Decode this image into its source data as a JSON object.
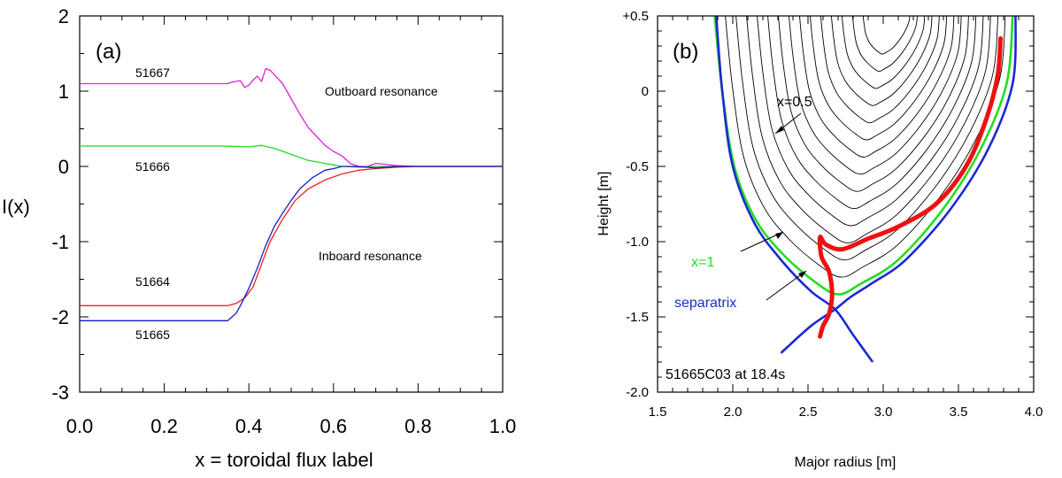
{
  "chart_data": [
    {
      "type": "line",
      "panel_label": "(a)",
      "xlabel": "x = toroidal flux label",
      "ylabel": "I(x)",
      "xlim": [
        0,
        1
      ],
      "ylim": [
        -3,
        2
      ],
      "xticks": [
        "0.0",
        "0.2",
        "0.4",
        "0.6",
        "0.8",
        "1.0"
      ],
      "yticks": [
        "2",
        "1",
        "0",
        "-1",
        "-2",
        "-3"
      ],
      "annotations": [
        "Outboard resonance",
        "Inboard resonance"
      ],
      "series": [
        {
          "name": "51667",
          "color": "#e020e0",
          "points": [
            [
              0,
              1.1
            ],
            [
              0.35,
              1.1
            ],
            [
              0.36,
              1.12
            ],
            [
              0.38,
              1.14
            ],
            [
              0.39,
              1.05
            ],
            [
              0.4,
              1.08
            ],
            [
              0.41,
              1.15
            ],
            [
              0.42,
              1.2
            ],
            [
              0.43,
              1.13
            ],
            [
              0.44,
              1.3
            ],
            [
              0.45,
              1.28
            ],
            [
              0.46,
              1.22
            ],
            [
              0.48,
              1.1
            ],
            [
              0.5,
              0.9
            ],
            [
              0.52,
              0.7
            ],
            [
              0.54,
              0.52
            ],
            [
              0.56,
              0.4
            ],
            [
              0.58,
              0.28
            ],
            [
              0.6,
              0.2
            ],
            [
              0.62,
              0.14
            ],
            [
              0.64,
              0.04
            ],
            [
              0.66,
              0.0
            ],
            [
              0.68,
              0.0
            ],
            [
              0.7,
              0.04
            ],
            [
              0.72,
              0.03
            ],
            [
              0.75,
              0.01
            ],
            [
              0.8,
              0.0
            ],
            [
              1.0,
              0.0
            ]
          ]
        },
        {
          "name": "51666",
          "color": "#22dd22",
          "points": [
            [
              0,
              0.27
            ],
            [
              0.34,
              0.27
            ],
            [
              0.4,
              0.26
            ],
            [
              0.43,
              0.28
            ],
            [
              0.46,
              0.24
            ],
            [
              0.5,
              0.16
            ],
            [
              0.54,
              0.08
            ],
            [
              0.58,
              0.04
            ],
            [
              0.6,
              0.02
            ],
            [
              0.62,
              0.0
            ],
            [
              0.66,
              -0.01
            ],
            [
              0.7,
              0.0
            ],
            [
              1.0,
              0.0
            ]
          ]
        },
        {
          "name": "51664",
          "color": "#ee2222",
          "points": [
            [
              0,
              -1.85
            ],
            [
              0.35,
              -1.85
            ],
            [
              0.37,
              -1.82
            ],
            [
              0.39,
              -1.75
            ],
            [
              0.41,
              -1.6
            ],
            [
              0.43,
              -1.3
            ],
            [
              0.45,
              -1.0
            ],
            [
              0.48,
              -0.7
            ],
            [
              0.51,
              -0.45
            ],
            [
              0.54,
              -0.3
            ],
            [
              0.58,
              -0.18
            ],
            [
              0.62,
              -0.1
            ],
            [
              0.66,
              -0.05
            ],
            [
              0.7,
              -0.03
            ],
            [
              0.75,
              -0.01
            ],
            [
              0.8,
              0.0
            ],
            [
              1.0,
              0.0
            ]
          ]
        },
        {
          "name": "51665",
          "color": "#1a1ac8",
          "points": [
            [
              0,
              -2.05
            ],
            [
              0.35,
              -2.05
            ],
            [
              0.36,
              -2.0
            ],
            [
              0.37,
              -1.95
            ],
            [
              0.38,
              -1.85
            ],
            [
              0.4,
              -1.62
            ],
            [
              0.42,
              -1.35
            ],
            [
              0.44,
              -1.05
            ],
            [
              0.46,
              -0.8
            ],
            [
              0.48,
              -0.62
            ],
            [
              0.5,
              -0.45
            ],
            [
              0.52,
              -0.3
            ],
            [
              0.55,
              -0.15
            ],
            [
              0.58,
              -0.05
            ],
            [
              0.6,
              -0.03
            ],
            [
              0.62,
              0.0
            ],
            [
              0.65,
              0.0
            ],
            [
              0.7,
              -0.02
            ],
            [
              0.75,
              0.0
            ],
            [
              1.0,
              0.0
            ]
          ]
        }
      ]
    },
    {
      "type": "contour",
      "panel_label": "(b)",
      "xlabel": "Major radius [m]",
      "ylabel": "Height [m]",
      "xlim": [
        1.5,
        4.0
      ],
      "ylim": [
        -2.0,
        0.5
      ],
      "xticks": [
        "1.5",
        "2.0",
        "2.5",
        "3.0",
        "3.5",
        "4.0"
      ],
      "yticks": [
        "+0.5",
        "0",
        "-0.5",
        "-1.0",
        "-1.5",
        "-2.0"
      ],
      "annotations": [
        "x=0.5",
        "x=1",
        "separatrix",
        "51665C03 at 18.4s"
      ],
      "flux_surfaces": {
        "count": 14,
        "color": "#000000",
        "axis_center": [
          3.05,
          0.55
        ],
        "outer_surface": [
          [
            1.88,
            0.5
          ],
          [
            1.93,
            0.0
          ],
          [
            2.01,
            -0.5
          ],
          [
            2.15,
            -0.85
          ],
          [
            2.33,
            -1.08
          ],
          [
            2.55,
            -1.27
          ],
          [
            2.7,
            -1.35
          ],
          [
            2.85,
            -1.28
          ],
          [
            3.1,
            -1.12
          ],
          [
            3.4,
            -0.78
          ],
          [
            3.65,
            -0.38
          ],
          [
            3.82,
            0.05
          ],
          [
            3.86,
            0.5
          ]
        ]
      },
      "x1_curve": {
        "color": "#22dd22",
        "points": [
          [
            1.88,
            0.5
          ],
          [
            1.93,
            0.0
          ],
          [
            2.01,
            -0.5
          ],
          [
            2.15,
            -0.85
          ],
          [
            2.33,
            -1.08
          ],
          [
            2.55,
            -1.27
          ],
          [
            2.7,
            -1.35
          ],
          [
            2.85,
            -1.28
          ],
          [
            3.1,
            -1.12
          ],
          [
            3.4,
            -0.78
          ],
          [
            3.65,
            -0.38
          ],
          [
            3.82,
            0.05
          ],
          [
            3.86,
            0.5
          ]
        ]
      },
      "separatrix": {
        "color": "#1a2ad0",
        "left_leg": [
          [
            1.89,
            0.5
          ],
          [
            1.93,
            0.0
          ],
          [
            2.0,
            -0.5
          ],
          [
            2.14,
            -0.87
          ],
          [
            2.32,
            -1.12
          ],
          [
            2.52,
            -1.33
          ],
          [
            2.68,
            -1.45
          ],
          [
            2.8,
            -1.62
          ],
          [
            2.93,
            -1.8
          ]
        ],
        "right_leg": [
          [
            3.88,
            0.5
          ],
          [
            3.86,
            0.05
          ],
          [
            3.7,
            -0.38
          ],
          [
            3.45,
            -0.78
          ],
          [
            3.15,
            -1.12
          ],
          [
            2.92,
            -1.28
          ],
          [
            2.78,
            -1.37
          ],
          [
            2.68,
            -1.45
          ],
          [
            2.52,
            -1.56
          ],
          [
            2.32,
            -1.74
          ]
        ]
      },
      "resonance_curve": {
        "color": "#ee1111",
        "points": [
          [
            3.78,
            0.35
          ],
          [
            3.76,
            0.1
          ],
          [
            3.68,
            -0.2
          ],
          [
            3.55,
            -0.5
          ],
          [
            3.35,
            -0.75
          ],
          [
            3.1,
            -0.9
          ],
          [
            2.9,
            -0.98
          ],
          [
            2.73,
            -1.05
          ],
          [
            2.62,
            -1.02
          ],
          [
            2.58,
            -0.97
          ],
          [
            2.59,
            -1.1
          ],
          [
            2.64,
            -1.2
          ],
          [
            2.66,
            -1.35
          ],
          [
            2.64,
            -1.48
          ],
          [
            2.6,
            -1.56
          ],
          [
            2.58,
            -1.63
          ]
        ]
      }
    }
  ]
}
